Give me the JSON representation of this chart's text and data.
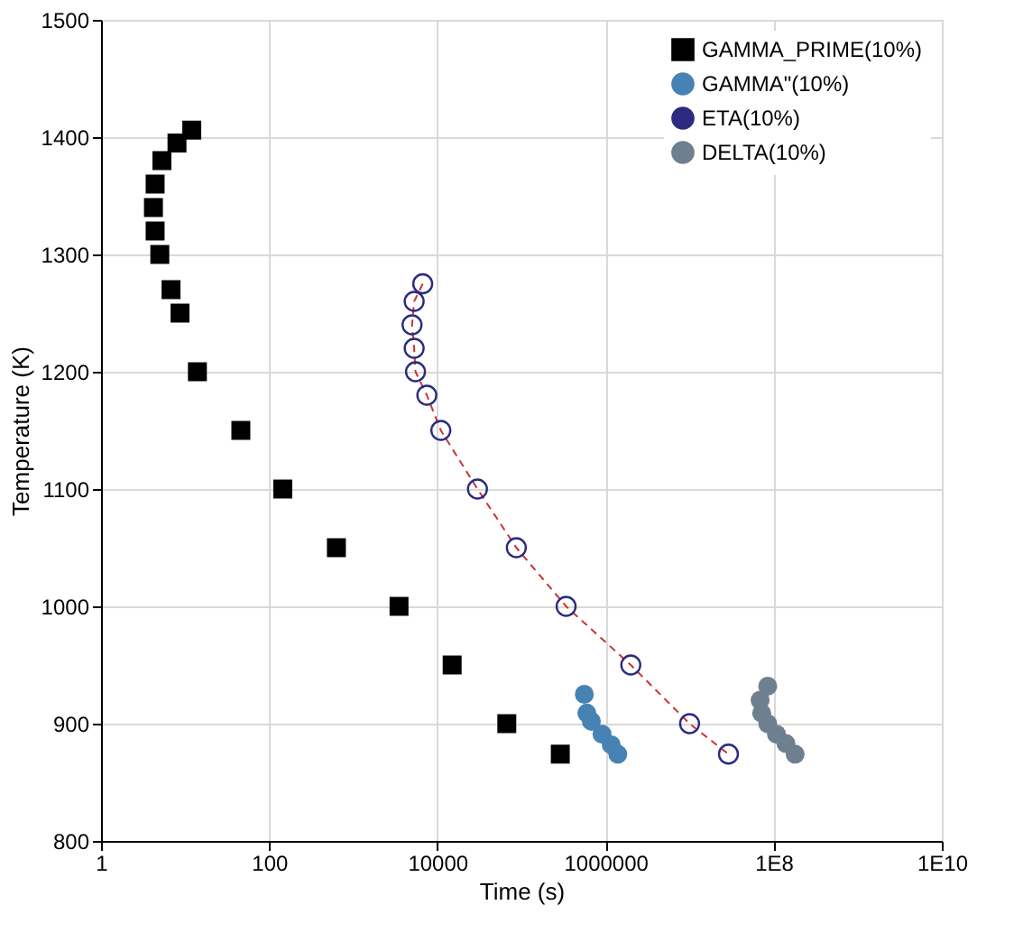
{
  "chart_data": {
    "type": "scatter",
    "xlabel": "Time (s)",
    "ylabel": "Temperature (K)",
    "log": "x",
    "grid": true,
    "legend": "top right",
    "xlim": [
      1,
      10000000000
    ],
    "xticks": [
      1,
      100,
      10000,
      1000000,
      {
        "value": 100000000,
        "label": "1E8"
      },
      {
        "value": 10000000000,
        "label": "1E10"
      }
    ],
    "ylim": [
      800,
      1500
    ],
    "yticks": [
      800,
      900,
      1000,
      1100,
      1200,
      1300,
      1400,
      1500
    ],
    "series": [
      {
        "name": "GAMMA_PRIME(10%)",
        "color": "#000000",
        "marker": "square",
        "x": [
          12,
          8,
          5.3,
          4.4,
          4.2,
          4.4,
          5,
          6.8,
          8.7,
          14,
          46,
          145,
          630,
          3500,
          15000,
          67000,
          290000
        ],
        "values": [
          1406,
          1395,
          1380,
          1360,
          1340,
          1320,
          1300,
          1270,
          1250,
          1200,
          1150,
          1100,
          1050,
          1000,
          950,
          900,
          874
        ]
      },
      {
        "name": "GAMMA\"(10%)",
        "color": "#4682b4",
        "marker": "circle",
        "x": [
          560000,
          600000,
          680000,
          910000,
          1170000,
          1400000
        ],
        "values": [
          925,
          909,
          902,
          891,
          882,
          874
        ]
      },
      {
        "name": "ETA(10%)",
        "type": "line",
        "line_style": "dashed",
        "color": "#2b2b80",
        "marker": "circle",
        "x": [
          6700,
          5300,
          5000,
          5300,
          5500,
          7500,
          11000,
          30000,
          87000,
          340000,
          2000000,
          10000000,
          29000000
        ],
        "values": [
          1275,
          1260,
          1240,
          1220,
          1200,
          1180,
          1150,
          1100,
          1050,
          1000,
          950,
          900,
          874
        ]
      },
      {
        "name": "DELTA(10%)",
        "color": "#6e7f90",
        "marker": "circle",
        "x": [
          85000000,
          69000000,
          72000000,
          85000000,
          108000000,
          140000000,
          180000000
        ],
        "values": [
          932,
          920,
          909,
          900,
          891,
          883,
          874
        ]
      }
    ]
  }
}
